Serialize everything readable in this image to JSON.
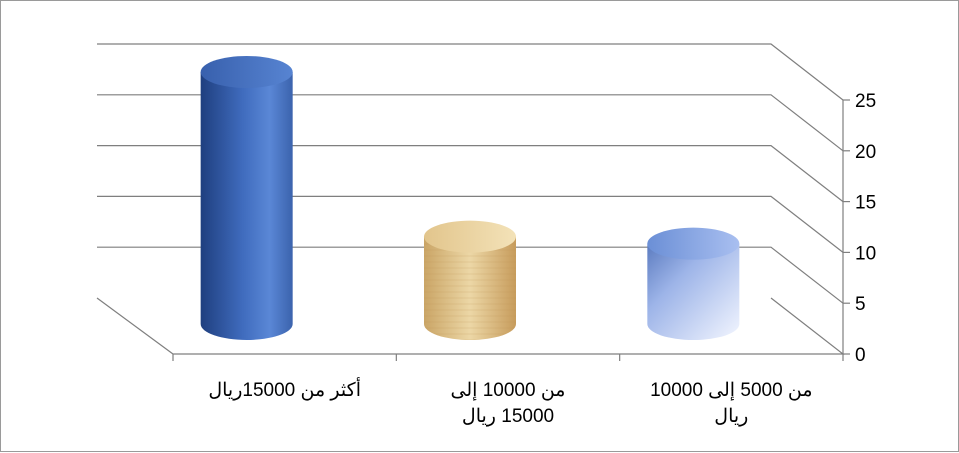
{
  "chart_data": {
    "type": "bar",
    "style": "3d-cylinder",
    "categories": [
      "من 5000 إلى 10000 ريال",
      "من 10000 إلى 15000 ريال",
      "أكثر من 15000ريال"
    ],
    "category_lines": [
      [
        "من 5000 إلى 10000",
        "ريال"
      ],
      [
        "من 10000 إلى",
        "15000 ريال"
      ],
      [
        "أكثر من 15000ريال"
      ]
    ],
    "values": [
      8,
      8.7,
      25.1
    ],
    "ylim": [
      0,
      25
    ],
    "yticks": [
      "0",
      "5",
      "10",
      "15",
      "20",
      "25"
    ],
    "grid": true,
    "axis_side": "right",
    "category_order": "right-to-left",
    "colors": {
      "bar_1": "#8ea9e0",
      "bar_2": "#d9b87a",
      "bar_3": "#4472c4",
      "grid": "#7f7f7f",
      "frame": "#9a9a9a"
    }
  }
}
